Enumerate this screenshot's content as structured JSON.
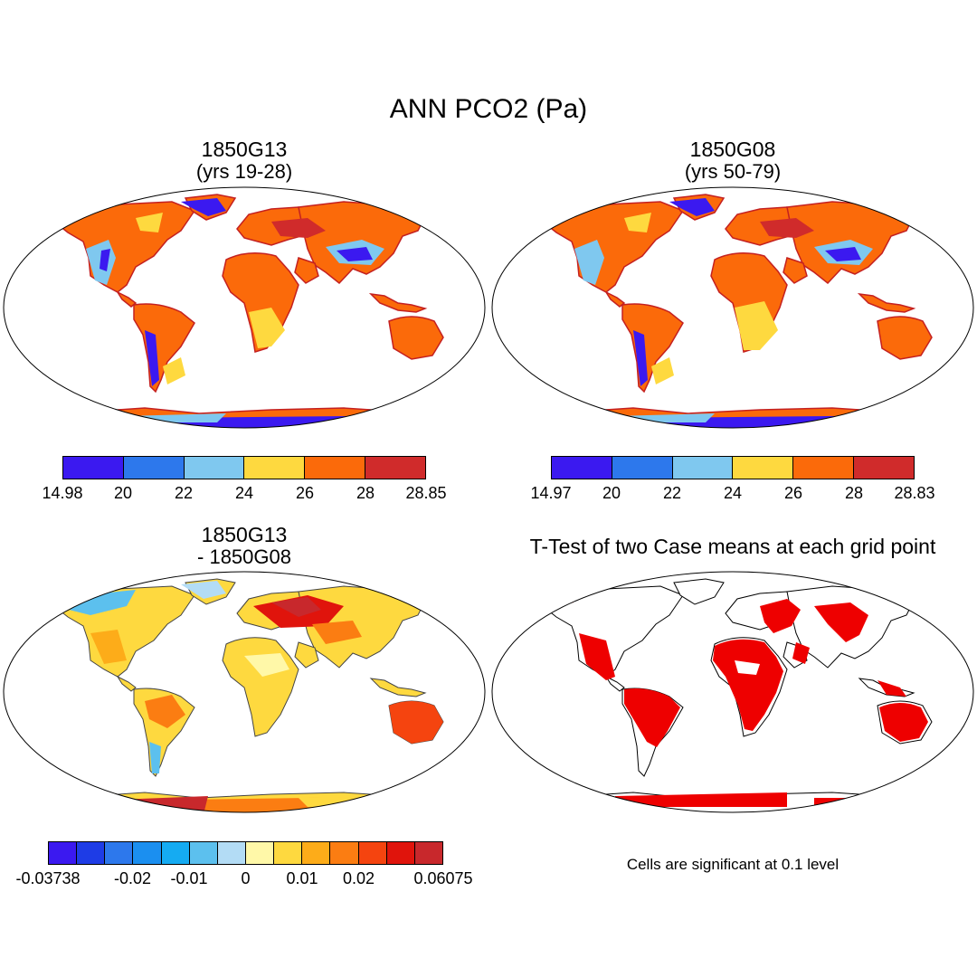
{
  "main_title": "ANN PCO2 (Pa)",
  "panels": {
    "top_left": {
      "title_line1": "1850G13",
      "title_line2": "(yrs 19-28)",
      "colorbar": {
        "colors": [
          "#3b19f0",
          "#2d78ec",
          "#7fc8ef",
          "#fed93f",
          "#fb6a0a",
          "#d02b2b"
        ],
        "tick_labels": [
          "14.98",
          "20",
          "22",
          "24",
          "26",
          "28",
          "28.85"
        ]
      }
    },
    "top_right": {
      "title_line1": "1850G08",
      "title_line2": "(yrs 50-79)",
      "colorbar": {
        "colors": [
          "#3b19f0",
          "#2d78ec",
          "#7fc8ef",
          "#fed93f",
          "#fb6a0a",
          "#d02b2b"
        ],
        "tick_labels": [
          "14.97",
          "20",
          "22",
          "24",
          "26",
          "28",
          "28.83"
        ]
      }
    },
    "bottom_left": {
      "title_line1": "1850G13",
      "title_line2": "- 1850G08",
      "colorbar": {
        "colors": [
          "#3b19f0",
          "#1e3ce6",
          "#2d78ec",
          "#1b8ff0",
          "#15abf2",
          "#5cc0ee",
          "#b3dcf5",
          "#fff8a8",
          "#fed93f",
          "#fdac19",
          "#fb7d12",
          "#f5440f",
          "#e0140c",
          "#c8282c"
        ],
        "tick_labels": [
          "-0.03738",
          "-0.02",
          "-0.01",
          "0",
          "0.01",
          "0.02",
          "0.06075"
        ]
      }
    },
    "bottom_right": {
      "title": "T-Test of two Case means at each grid point",
      "footnote": "Cells are significant at 0.1 level",
      "significant_color": "#ee0000"
    }
  }
}
